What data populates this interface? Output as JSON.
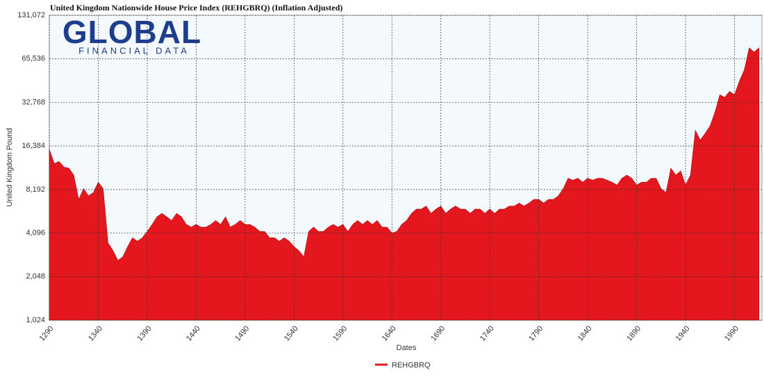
{
  "chart_data": {
    "type": "area",
    "title": "United Kingdom Nationwide House Price Index (REHGBRQ) (Inflation Adjusted)",
    "logo": {
      "name": "GLOBAL",
      "subtitle": "FINANCIAL DATA"
    },
    "x_label": "Dates",
    "y_label": "United Kingdom Pound",
    "log_scale": true,
    "grid": true,
    "legend": "bottom",
    "xlim": [
      1290,
      2018
    ],
    "xticks": [
      1290,
      1340,
      1390,
      1440,
      1490,
      1540,
      1590,
      1640,
      1690,
      1740,
      1790,
      1840,
      1890,
      1940,
      1990
    ],
    "ylim": [
      1024,
      131072
    ],
    "yticks": [
      {
        "value": 1024,
        "label": "1,024"
      },
      {
        "value": 2048,
        "label": "2,048"
      },
      {
        "value": 4096,
        "label": "4,096"
      },
      {
        "value": 8192,
        "label": "8,192"
      },
      {
        "value": 16384,
        "label": "16,384"
      },
      {
        "value": 32768,
        "label": "32,768"
      },
      {
        "value": 65536,
        "label": "65,536"
      },
      {
        "value": 131072,
        "label": "131,072"
      }
    ],
    "x": [
      1290,
      1295,
      1300,
      1305,
      1310,
      1315,
      1320,
      1325,
      1330,
      1335,
      1340,
      1345,
      1350,
      1355,
      1360,
      1365,
      1370,
      1375,
      1380,
      1385,
      1390,
      1395,
      1400,
      1405,
      1410,
      1415,
      1420,
      1425,
      1430,
      1435,
      1440,
      1445,
      1450,
      1455,
      1460,
      1465,
      1470,
      1475,
      1480,
      1485,
      1490,
      1495,
      1500,
      1505,
      1510,
      1515,
      1520,
      1525,
      1530,
      1535,
      1540,
      1545,
      1550,
      1555,
      1560,
      1565,
      1570,
      1575,
      1580,
      1585,
      1590,
      1595,
      1600,
      1605,
      1610,
      1615,
      1620,
      1625,
      1630,
      1635,
      1640,
      1645,
      1650,
      1655,
      1660,
      1665,
      1670,
      1675,
      1680,
      1685,
      1690,
      1695,
      1700,
      1705,
      1710,
      1715,
      1720,
      1725,
      1730,
      1735,
      1740,
      1745,
      1750,
      1755,
      1760,
      1765,
      1770,
      1775,
      1780,
      1785,
      1790,
      1795,
      1800,
      1805,
      1810,
      1815,
      1820,
      1825,
      1830,
      1835,
      1840,
      1845,
      1850,
      1855,
      1860,
      1865,
      1870,
      1875,
      1880,
      1885,
      1890,
      1895,
      1900,
      1905,
      1910,
      1915,
      1920,
      1925,
      1930,
      1935,
      1940,
      1945,
      1950,
      1955,
      1960,
      1965,
      1970,
      1975,
      1980,
      1985,
      1990,
      1995,
      2000,
      2005,
      2010,
      2015
    ],
    "series": [
      {
        "name": "REHGBRQ",
        "color": "#e3171d",
        "values": [
          15500,
          12400,
          12800,
          11700,
          11500,
          10300,
          7000,
          8300,
          7400,
          7800,
          9200,
          8300,
          3500,
          3100,
          2650,
          2800,
          3300,
          3800,
          3600,
          3800,
          4200,
          4700,
          5300,
          5600,
          5300,
          5000,
          5600,
          5300,
          4700,
          4500,
          4700,
          4500,
          4500,
          4700,
          5000,
          4700,
          5300,
          4500,
          4700,
          5000,
          4700,
          4700,
          4500,
          4200,
          4200,
          3800,
          3800,
          3600,
          3800,
          3600,
          3300,
          3100,
          2800,
          4200,
          4500,
          4200,
          4200,
          4500,
          4700,
          4500,
          4700,
          4200,
          4700,
          5000,
          4700,
          5000,
          4700,
          5000,
          4500,
          4500,
          4100,
          4200,
          4700,
          5000,
          5600,
          6000,
          6000,
          6300,
          5600,
          6000,
          6300,
          5600,
          6000,
          6300,
          6000,
          6000,
          5600,
          6000,
          6000,
          5600,
          6000,
          5600,
          6000,
          6000,
          6300,
          6300,
          6600,
          6300,
          6600,
          7000,
          7000,
          6600,
          7000,
          7000,
          7400,
          8300,
          9800,
          9500,
          9800,
          9200,
          9800,
          9500,
          9800,
          9800,
          9500,
          9200,
          8800,
          9800,
          10300,
          9800,
          8800,
          9200,
          9200,
          9800,
          9800,
          8300,
          7800,
          11500,
          10300,
          11000,
          8800,
          10300,
          21000,
          18000,
          20000,
          22500,
          28000,
          37000,
          35500,
          39000,
          37000,
          46000,
          55000,
          78000,
          73000,
          78000
        ]
      }
    ]
  }
}
